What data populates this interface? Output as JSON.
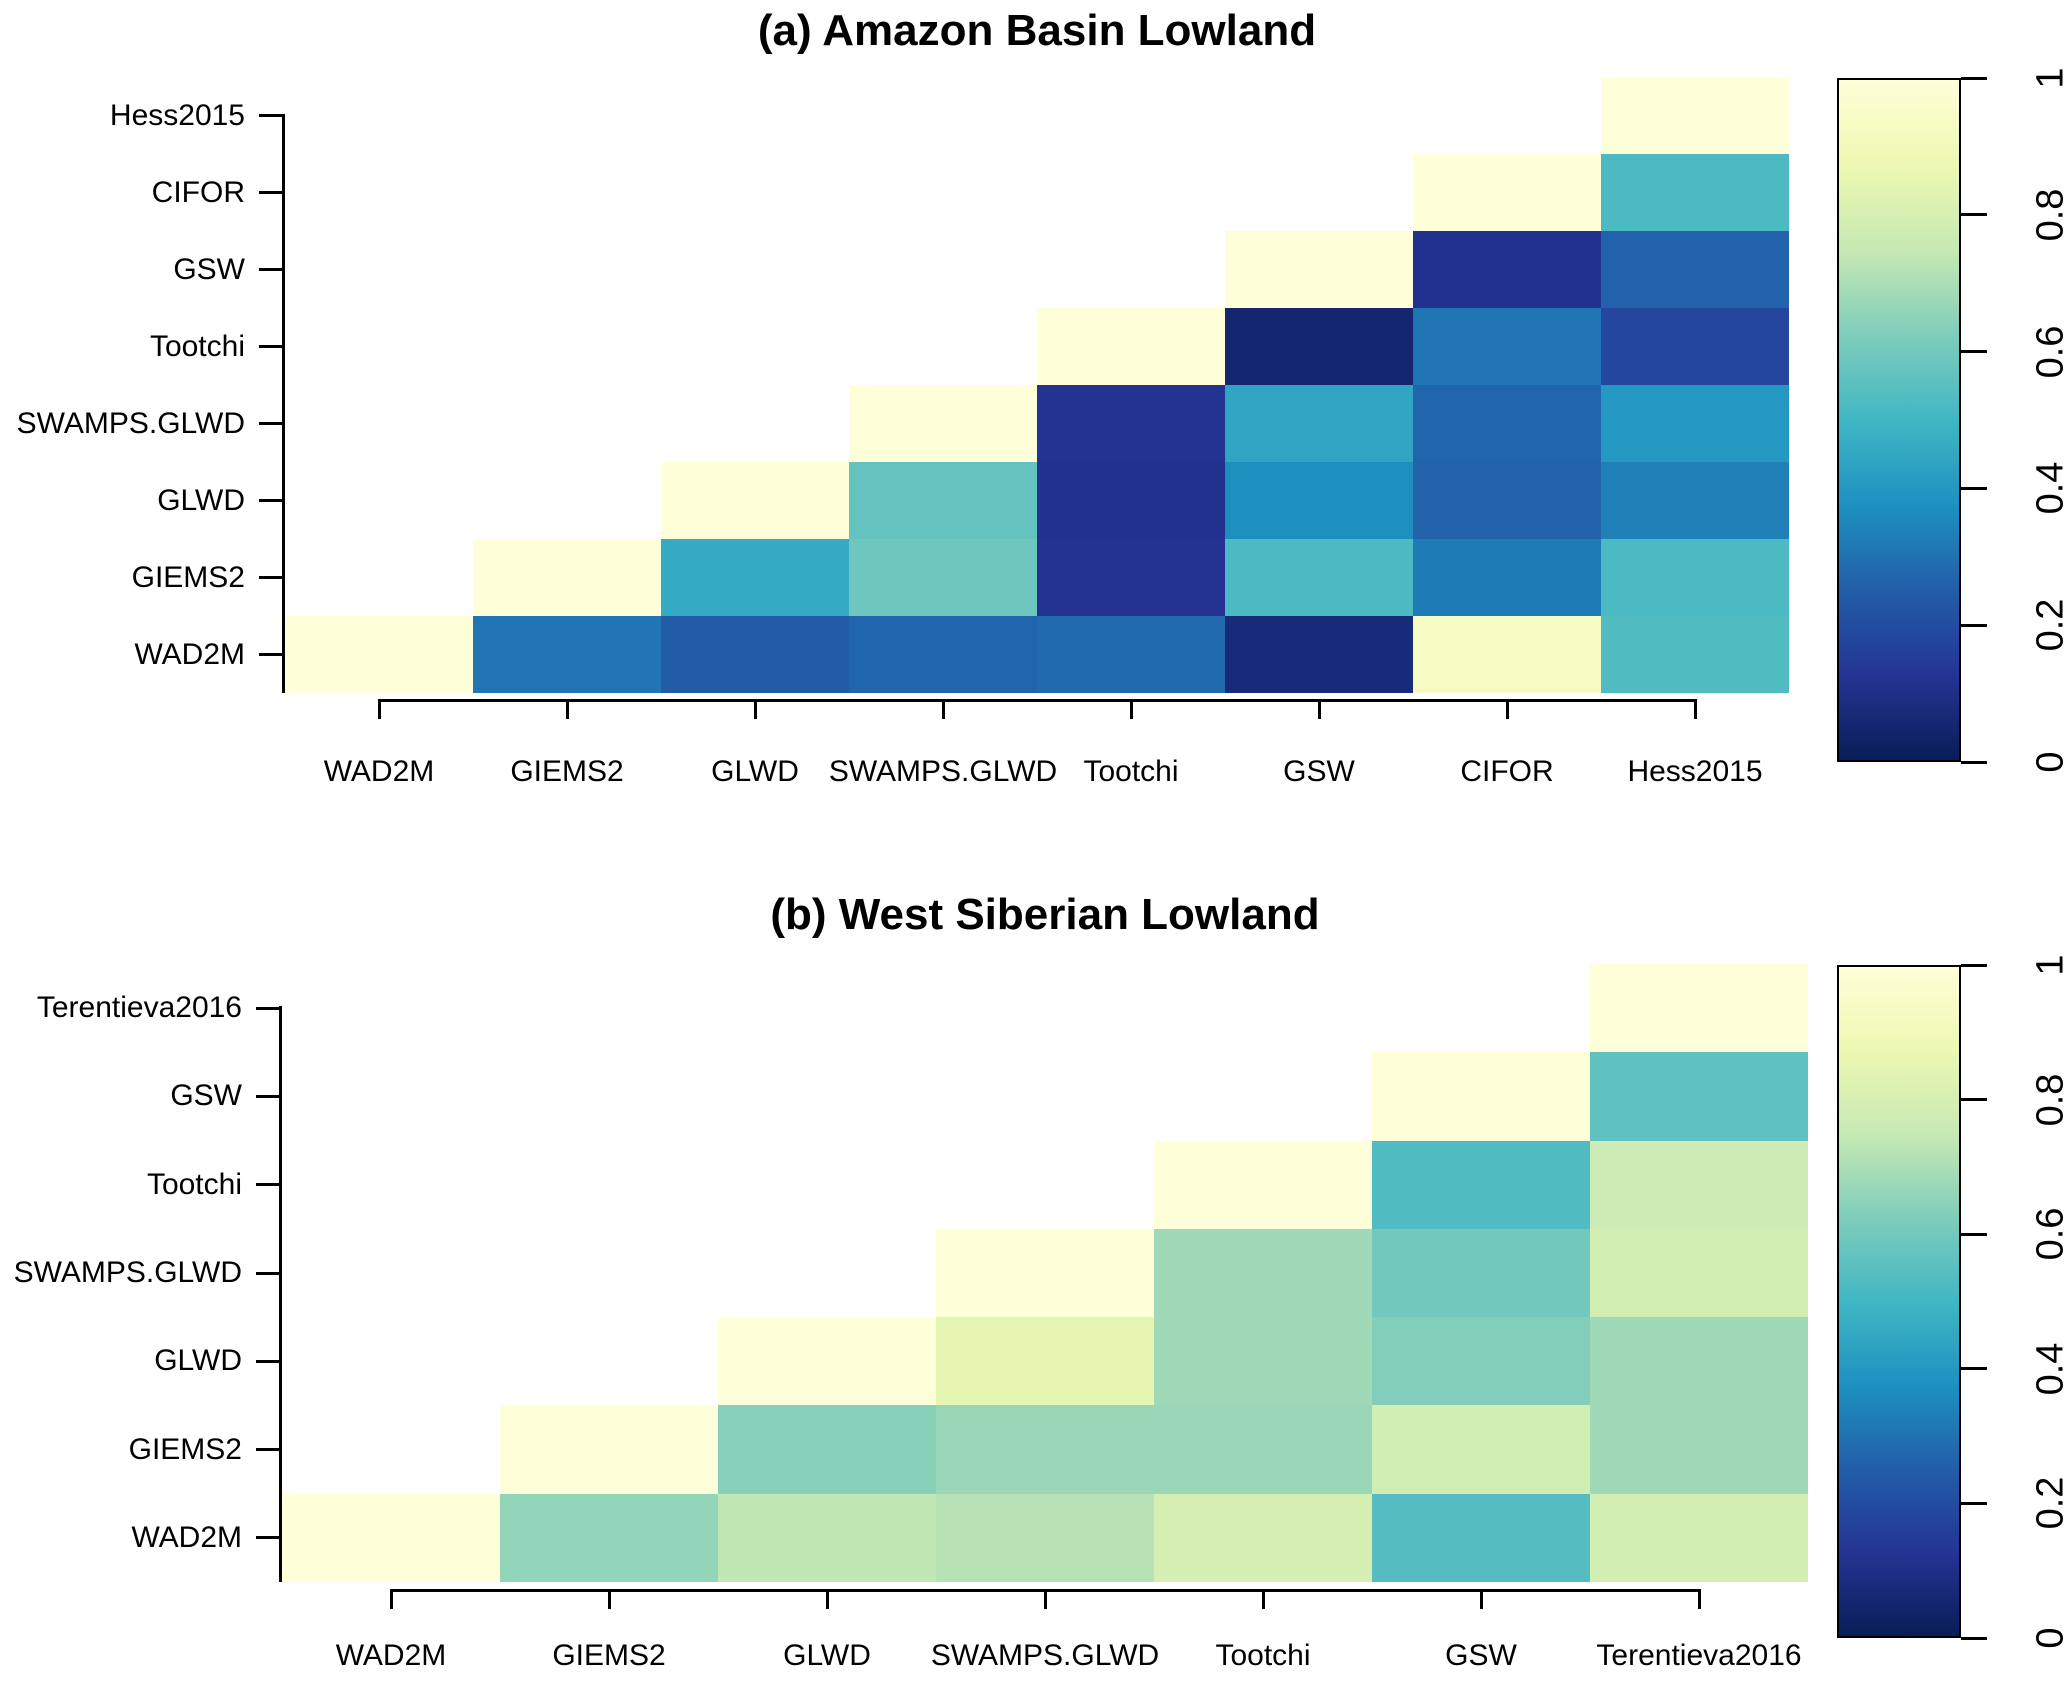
{
  "figure": {
    "background": "#ffffff",
    "text_color": "#000000"
  },
  "colormap_stops": [
    {
      "v": 0.0,
      "c": "#081d58"
    },
    {
      "v": 0.125,
      "c": "#253494"
    },
    {
      "v": 0.25,
      "c": "#225ea8"
    },
    {
      "v": 0.375,
      "c": "#1d91c0"
    },
    {
      "v": 0.5,
      "c": "#41b6c4"
    },
    {
      "v": 0.625,
      "c": "#7fcdbb"
    },
    {
      "v": 0.75,
      "c": "#c7e9b4"
    },
    {
      "v": 0.875,
      "c": "#edf8b1"
    },
    {
      "v": 1.0,
      "c": "#ffffd9"
    }
  ],
  "colorbar": {
    "tick_labels": [
      "0",
      "0.2",
      "0.4",
      "0.6",
      "0.8",
      "1"
    ],
    "tick_values": [
      0,
      0.2,
      0.4,
      0.6,
      0.8,
      1
    ]
  },
  "chart_data": [
    {
      "type": "heatmap",
      "title": "(a) Amazon Basin Lowland",
      "labels": [
        "WAD2M",
        "GIEMS2",
        "GLWD",
        "SWAMPS.GLWD",
        "Tootchi",
        "GSW",
        "CIFOR",
        "Hess2015"
      ],
      "note": "upper-triangular similarity matrix; matrix[i][j] is value between labels[i] and labels[j] for j>=i; y-axis shows labels bottom-to-top",
      "value_range": [
        0,
        1
      ],
      "colormap": "YlGnBu (1 = light yellow, 0 = dark navy)",
      "matrix": [
        [
          1.0,
          0.31,
          0.24,
          0.27,
          0.28,
          0.07,
          0.93,
          0.53
        ],
        [
          null,
          1.0,
          0.46,
          0.59,
          0.12,
          0.52,
          0.32,
          0.52
        ],
        [
          null,
          null,
          1.0,
          0.57,
          0.11,
          0.37,
          0.26,
          0.33
        ],
        [
          null,
          null,
          null,
          1.0,
          0.12,
          0.44,
          0.27,
          0.4
        ],
        [
          null,
          null,
          null,
          null,
          1.0,
          0.05,
          0.31,
          0.18
        ],
        [
          null,
          null,
          null,
          null,
          null,
          1.0,
          0.11,
          0.26
        ],
        [
          null,
          null,
          null,
          null,
          null,
          null,
          1.0,
          0.52
        ],
        [
          null,
          null,
          null,
          null,
          null,
          null,
          null,
          1.0
        ]
      ]
    },
    {
      "type": "heatmap",
      "title": "(b) West Siberian Lowland",
      "labels": [
        "WAD2M",
        "GIEMS2",
        "GLWD",
        "SWAMPS.GLWD",
        "Tootchi",
        "GSW",
        "Terentieva2016"
      ],
      "note": "upper-triangular similarity matrix; matrix[i][j] is value between labels[i] and labels[j] for j>=i; y-axis shows labels bottom-to-top",
      "value_range": [
        0,
        1
      ],
      "colormap": "YlGnBu (1 = light yellow, 0 = dark navy)",
      "matrix": [
        [
          1.0,
          0.66,
          0.74,
          0.72,
          0.8,
          0.54,
          0.79
        ],
        [
          null,
          1.0,
          0.64,
          0.67,
          0.67,
          0.78,
          0.68
        ],
        [
          null,
          null,
          1.0,
          0.85,
          0.68,
          0.63,
          0.68
        ],
        [
          null,
          null,
          null,
          1.0,
          0.68,
          0.6,
          0.79
        ],
        [
          null,
          null,
          null,
          null,
          1.0,
          0.53,
          0.77
        ],
        [
          null,
          null,
          null,
          null,
          null,
          1.0,
          0.56
        ],
        [
          null,
          null,
          null,
          null,
          null,
          null,
          1.0
        ]
      ]
    }
  ]
}
